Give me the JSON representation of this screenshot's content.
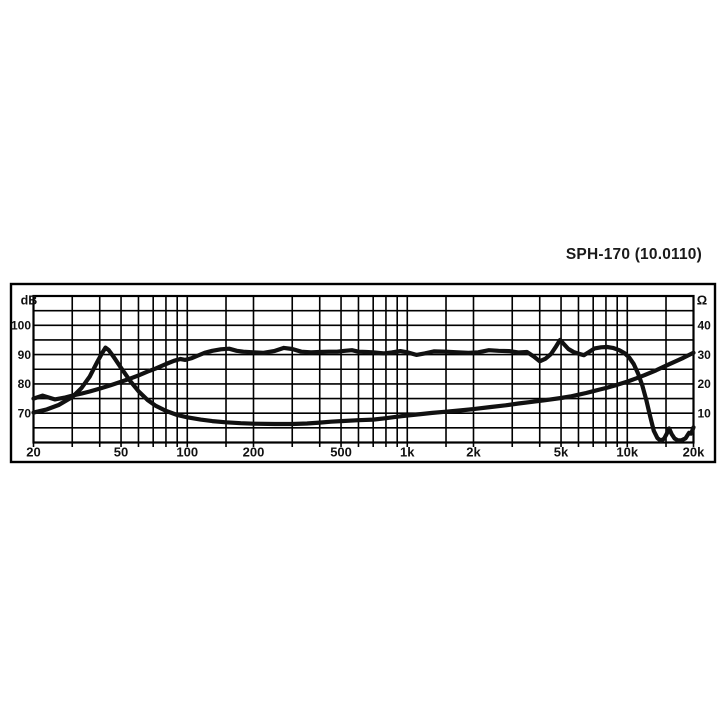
{
  "page": {
    "title": "SPH-170 (10.0110)"
  },
  "chart_data": {
    "type": "line",
    "title": "SPH-170 (10.0110)",
    "background_color": "#ffffff",
    "grid_color": "#000000",
    "curve_color": "#111111",
    "x_axis": {
      "scale": "log",
      "min": 20,
      "max": 20000,
      "tick_values": [
        20,
        50,
        100,
        200,
        500,
        1000,
        2000,
        5000,
        10000,
        20000
      ],
      "tick_labels": [
        "20",
        "50",
        "100",
        "200",
        "500",
        "1k",
        "2k",
        "5k",
        "10k",
        "20k"
      ],
      "gridline_values": [
        20,
        30,
        40,
        50,
        60,
        70,
        80,
        90,
        100,
        150,
        200,
        300,
        400,
        500,
        600,
        700,
        800,
        900,
        1000,
        1500,
        2000,
        3000,
        4000,
        5000,
        6000,
        7000,
        8000,
        9000,
        10000,
        15000,
        20000
      ]
    },
    "y_left_axis": {
      "label": "dB",
      "min": 60,
      "max": 110,
      "minor_step": 5,
      "tick_values": [
        100,
        90,
        80,
        70
      ],
      "tick_labels": [
        "100",
        "90",
        "80",
        "70"
      ]
    },
    "y_right_axis": {
      "label": "Ω",
      "min": 0,
      "max": 50,
      "minor_step": 5,
      "tick_values": [
        40,
        30,
        20,
        10
      ],
      "tick_labels": [
        "40",
        "30",
        "20",
        "10"
      ]
    },
    "series": [
      {
        "name": "frequency-response-spl",
        "axis": "left",
        "unit": "dB",
        "points": [
          [
            20,
            75.0
          ],
          [
            22,
            76.0
          ],
          [
            25,
            74.7
          ],
          [
            28,
            75.4
          ],
          [
            30,
            76.0
          ],
          [
            33,
            76.7
          ],
          [
            36,
            77.4
          ],
          [
            40,
            78.4
          ],
          [
            45,
            79.6
          ],
          [
            50,
            80.7
          ],
          [
            55,
            81.8
          ],
          [
            60,
            82.9
          ],
          [
            66,
            84.2
          ],
          [
            72,
            85.3
          ],
          [
            80,
            86.8
          ],
          [
            87,
            87.9
          ],
          [
            93,
            88.5
          ],
          [
            98,
            88.2
          ],
          [
            105,
            88.8
          ],
          [
            112,
            89.7
          ],
          [
            120,
            90.6
          ],
          [
            130,
            91.3
          ],
          [
            142,
            91.8
          ],
          [
            155,
            92.0
          ],
          [
            168,
            91.3
          ],
          [
            180,
            91.0
          ],
          [
            200,
            90.8
          ],
          [
            222,
            90.6
          ],
          [
            248,
            91.2
          ],
          [
            275,
            92.3
          ],
          [
            300,
            91.9
          ],
          [
            330,
            91.0
          ],
          [
            365,
            90.8
          ],
          [
            400,
            90.9
          ],
          [
            440,
            91.0
          ],
          [
            480,
            91.0
          ],
          [
            520,
            91.3
          ],
          [
            560,
            91.5
          ],
          [
            600,
            91.0
          ],
          [
            650,
            90.9
          ],
          [
            700,
            90.8
          ],
          [
            780,
            90.4
          ],
          [
            850,
            90.7
          ],
          [
            930,
            91.2
          ],
          [
            1000,
            90.8
          ],
          [
            1100,
            89.9
          ],
          [
            1200,
            90.4
          ],
          [
            1320,
            91.1
          ],
          [
            1500,
            91.0
          ],
          [
            1700,
            90.8
          ],
          [
            1900,
            90.6
          ],
          [
            2100,
            90.8
          ],
          [
            2350,
            91.5
          ],
          [
            2600,
            91.3
          ],
          [
            2900,
            91.2
          ],
          [
            3200,
            90.7
          ],
          [
            3500,
            90.9
          ],
          [
            3750,
            89.4
          ],
          [
            4000,
            87.7
          ],
          [
            4250,
            88.6
          ],
          [
            4500,
            90.2
          ],
          [
            4750,
            92.8
          ],
          [
            4950,
            95.0
          ],
          [
            5150,
            93.6
          ],
          [
            5400,
            91.9
          ],
          [
            5700,
            90.9
          ],
          [
            6000,
            90.3
          ],
          [
            6350,
            89.8
          ],
          [
            6700,
            90.9
          ],
          [
            7100,
            92.1
          ],
          [
            7600,
            92.5
          ],
          [
            8100,
            92.6
          ],
          [
            8600,
            92.3
          ],
          [
            9200,
            91.5
          ],
          [
            9700,
            90.5
          ],
          [
            10200,
            89.0
          ],
          [
            10700,
            86.8
          ],
          [
            11200,
            83.5
          ],
          [
            11700,
            79.5
          ],
          [
            12200,
            74.5
          ],
          [
            12700,
            69.0
          ],
          [
            13200,
            64.0
          ],
          [
            13700,
            61.5
          ],
          [
            14200,
            60.6
          ],
          [
            14700,
            61.3
          ],
          [
            15100,
            62.9
          ],
          [
            15500,
            64.8
          ],
          [
            15900,
            62.9
          ],
          [
            16400,
            61.4
          ],
          [
            17000,
            60.7
          ],
          [
            17700,
            60.8
          ],
          [
            18400,
            61.4
          ],
          [
            19100,
            63.3
          ],
          [
            19500,
            63.0
          ],
          [
            20000,
            65.2
          ]
        ]
      },
      {
        "name": "impedance",
        "axis": "right",
        "unit": "ohm",
        "points": [
          [
            20,
            10.2
          ],
          [
            23,
            11.3
          ],
          [
            26,
            12.8
          ],
          [
            30,
            15.5
          ],
          [
            33,
            18.5
          ],
          [
            36,
            22.5
          ],
          [
            39,
            27.5
          ],
          [
            41,
            30.5
          ],
          [
            42.5,
            32.4
          ],
          [
            44,
            31.5
          ],
          [
            46,
            29.5
          ],
          [
            50,
            25.5
          ],
          [
            55,
            21.0
          ],
          [
            60,
            17.5
          ],
          [
            66,
            14.5
          ],
          [
            72,
            12.5
          ],
          [
            80,
            10.8
          ],
          [
            90,
            9.4
          ],
          [
            100,
            8.6
          ],
          [
            115,
            7.8
          ],
          [
            130,
            7.3
          ],
          [
            150,
            6.9
          ],
          [
            175,
            6.6
          ],
          [
            200,
            6.4
          ],
          [
            250,
            6.3
          ],
          [
            300,
            6.3
          ],
          [
            350,
            6.5
          ],
          [
            400,
            6.8
          ],
          [
            450,
            7.1
          ],
          [
            500,
            7.3
          ],
          [
            600,
            7.6
          ],
          [
            700,
            7.8
          ],
          [
            800,
            8.3
          ],
          [
            900,
            8.8
          ],
          [
            1000,
            9.2
          ],
          [
            1150,
            9.7
          ],
          [
            1300,
            10.1
          ],
          [
            1500,
            10.5
          ],
          [
            1700,
            10.9
          ],
          [
            2000,
            11.4
          ],
          [
            2400,
            12.1
          ],
          [
            2800,
            12.7
          ],
          [
            3200,
            13.3
          ],
          [
            3700,
            13.9
          ],
          [
            4200,
            14.4
          ],
          [
            5000,
            15.2
          ],
          [
            5500,
            15.7
          ],
          [
            6000,
            16.3
          ],
          [
            6500,
            16.9
          ],
          [
            7000,
            17.5
          ],
          [
            7500,
            18.1
          ],
          [
            8000,
            18.6
          ],
          [
            9000,
            19.7
          ],
          [
            10000,
            20.8
          ],
          [
            11000,
            21.9
          ],
          [
            12000,
            23.0
          ],
          [
            13500,
            24.6
          ],
          [
            15000,
            26.2
          ],
          [
            16500,
            27.6
          ],
          [
            18000,
            28.9
          ],
          [
            20000,
            30.6
          ]
        ]
      }
    ]
  }
}
